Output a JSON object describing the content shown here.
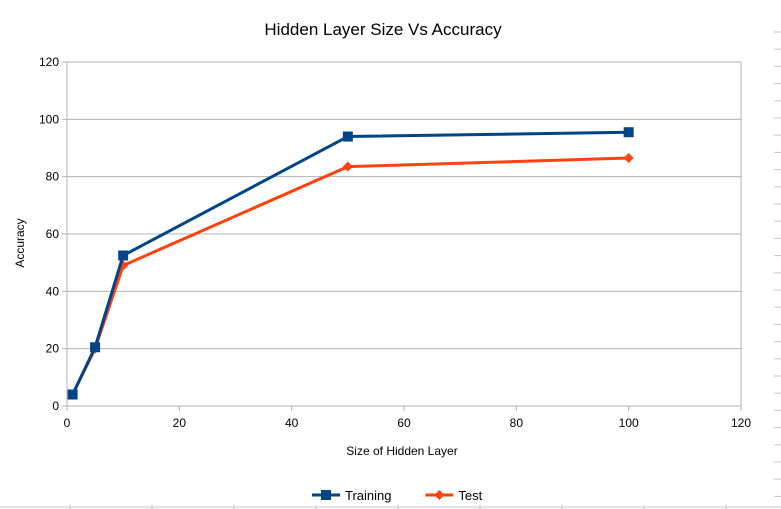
{
  "chart_data": {
    "type": "line",
    "title": "Hidden Layer Size Vs Accuracy",
    "xlabel": "Size of Hidden Layer",
    "ylabel": "Accuracy",
    "xlim": [
      0,
      120
    ],
    "ylim": [
      0,
      120
    ],
    "xticks": [
      0,
      20,
      40,
      60,
      80,
      100,
      120
    ],
    "yticks": [
      0,
      20,
      40,
      60,
      80,
      100,
      120
    ],
    "grid": true,
    "legend_position": "bottom",
    "series": [
      {
        "name": "Training",
        "color": "#004586",
        "marker": "square",
        "x": [
          1,
          5,
          10,
          50,
          100
        ],
        "y": [
          4,
          20.5,
          52.5,
          94,
          95.5
        ]
      },
      {
        "name": "Test",
        "color": "#ff420e",
        "marker": "diamond",
        "x": [
          1,
          5,
          10,
          50,
          100
        ],
        "y": [
          4,
          20,
          49,
          83.5,
          86.5
        ]
      }
    ]
  }
}
